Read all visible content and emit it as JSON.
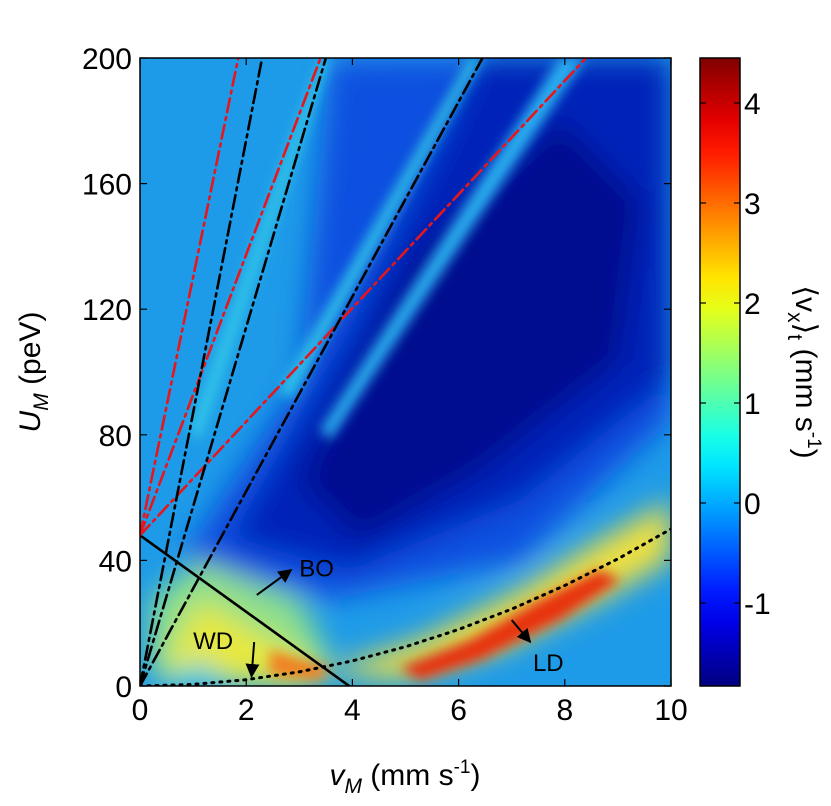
{
  "chart_data": {
    "type": "heatmap-lines",
    "x_label": [
      "v",
      "M",
      " (mm s",
      "-1",
      ")"
    ],
    "y_label": [
      "U",
      "M",
      " (peV)"
    ],
    "colorbar_label": [
      "⟨v",
      "x",
      "⟩",
      "t",
      " (mm s",
      "-1",
      ")"
    ],
    "xlim": [
      0,
      10
    ],
    "xticks": [
      0,
      2,
      4,
      6,
      8,
      10
    ],
    "ylim": [
      0,
      200
    ],
    "yticks": [
      0,
      40,
      80,
      120,
      160,
      200
    ],
    "colormap": "jet",
    "clim": [
      -1.83,
      4.45
    ],
    "cticks": [
      -1,
      0,
      1,
      2,
      3,
      4
    ],
    "series": [
      {
        "color": "#000000",
        "style": "solid",
        "x": [
          0,
          3.94
        ],
        "y": [
          48,
          0
        ]
      },
      {
        "color": "#000000",
        "style": "dotted",
        "x": [
          0,
          1,
          2,
          3,
          4,
          5,
          6,
          7,
          8,
          9,
          10
        ],
        "y": [
          0,
          0.5,
          2,
          4.5,
          8,
          12.5,
          18,
          24.5,
          32,
          40.5,
          50
        ]
      },
      {
        "color": "#e8151b",
        "style": "dashdot",
        "x": [
          0,
          1.85
        ],
        "y": [
          48,
          200
        ]
      },
      {
        "color": "#e8151b",
        "style": "dashdot",
        "x": [
          0,
          3.4
        ],
        "y": [
          48,
          200
        ]
      },
      {
        "color": "#e8151b",
        "style": "dashdot",
        "x": [
          0,
          8.4
        ],
        "y": [
          48,
          200
        ]
      },
      {
        "color": "#000000",
        "style": "dashdot",
        "x": [
          0,
          2.3
        ],
        "y": [
          0,
          200
        ]
      },
      {
        "color": "#000000",
        "style": "dashdot",
        "x": [
          0,
          3.5
        ],
        "y": [
          0,
          200
        ]
      },
      {
        "color": "#000000",
        "style": "dashdot",
        "x": [
          0,
          6.45
        ],
        "y": [
          0,
          200
        ]
      }
    ],
    "annotations": [
      "BO",
      "WD",
      "LD"
    ]
  }
}
